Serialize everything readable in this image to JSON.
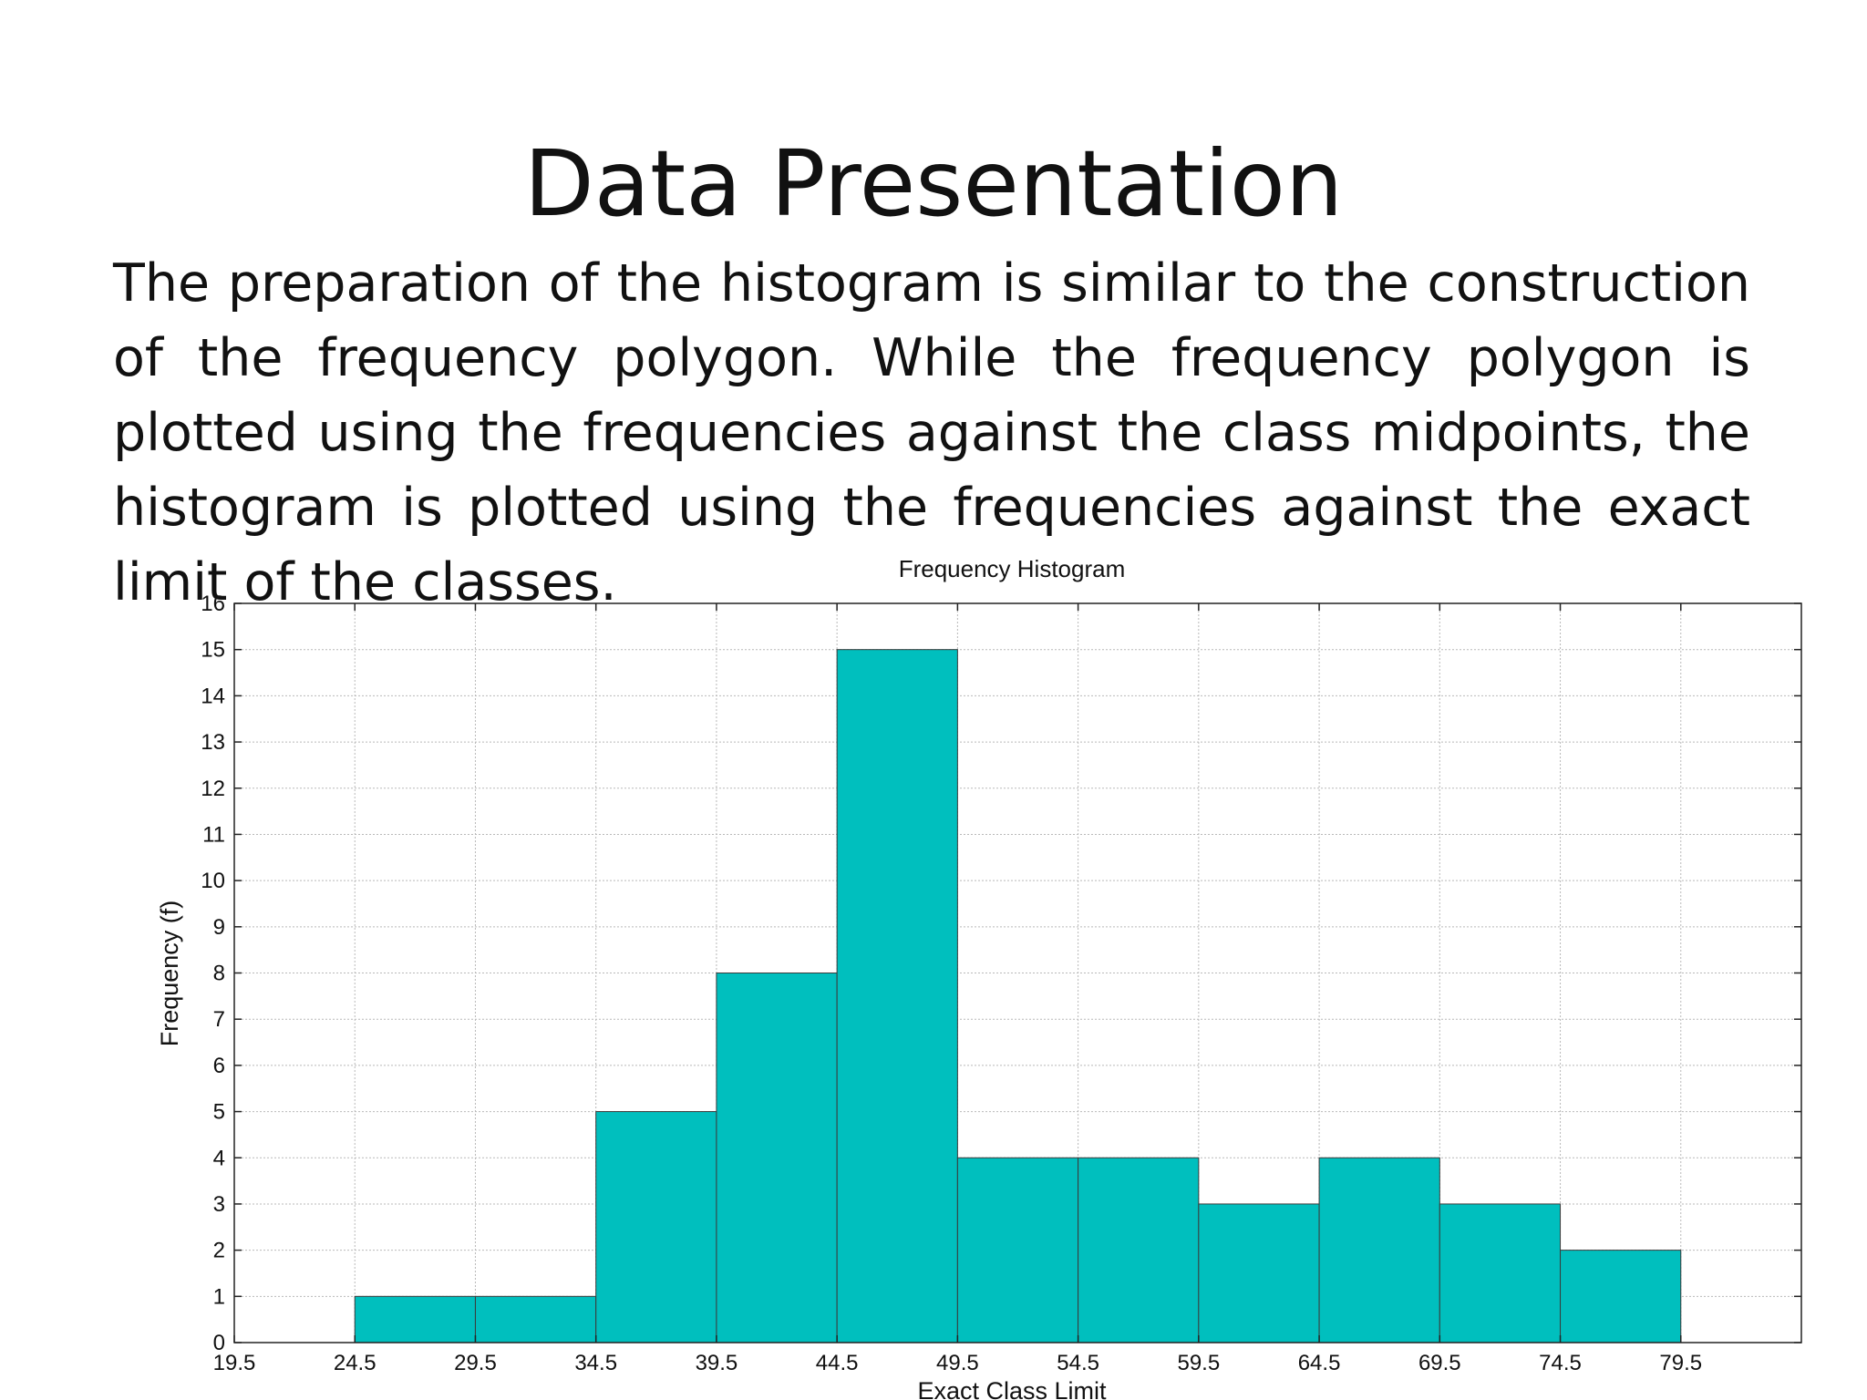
{
  "slide": {
    "title": "Data Presentation",
    "body": "The preparation of the histogram is similar to the construction of the frequency polygon. While the frequency polygon is plotted using the frequencies against the class midpoints, the histogram is plotted using the frequencies against the exact limit of the classes."
  },
  "chart_data": {
    "type": "bar",
    "title": "Frequency Histogram",
    "xlabel": "Exact Class Limit",
    "ylabel": "Frequency (f)",
    "x_ticks": [
      "19.5",
      "24.5",
      "29.5",
      "34.5",
      "39.5",
      "44.5",
      "49.5",
      "54.5",
      "59.5",
      "64.5",
      "69.5",
      "74.5",
      "79.5"
    ],
    "y_ticks": [
      "0",
      "1",
      "2",
      "3",
      "4",
      "5",
      "6",
      "7",
      "8",
      "9",
      "10",
      "11",
      "12",
      "13",
      "14",
      "15",
      "16"
    ],
    "bins": [
      {
        "from": 24.5,
        "to": 29.5,
        "value": 1
      },
      {
        "from": 29.5,
        "to": 34.5,
        "value": 1
      },
      {
        "from": 34.5,
        "to": 39.5,
        "value": 5
      },
      {
        "from": 39.5,
        "to": 44.5,
        "value": 8
      },
      {
        "from": 44.5,
        "to": 49.5,
        "value": 15
      },
      {
        "from": 49.5,
        "to": 54.5,
        "value": 4
      },
      {
        "from": 54.5,
        "to": 59.5,
        "value": 4
      },
      {
        "from": 59.5,
        "to": 64.5,
        "value": 3
      },
      {
        "from": 64.5,
        "to": 69.5,
        "value": 4
      },
      {
        "from": 69.5,
        "to": 74.5,
        "value": 3
      },
      {
        "from": 74.5,
        "to": 79.5,
        "value": 2
      }
    ],
    "xlim": [
      19.5,
      84.5
    ],
    "ylim": [
      0,
      16
    ],
    "grid": true,
    "bar_color": "#00bfbe"
  }
}
